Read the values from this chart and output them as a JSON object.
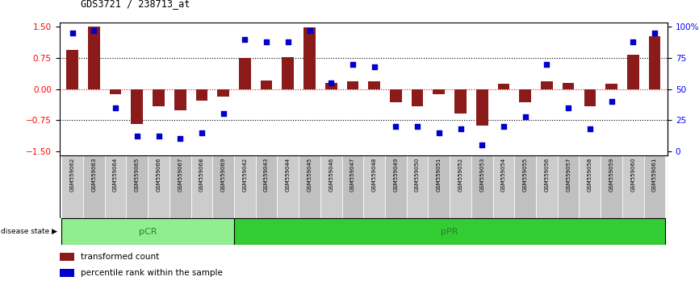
{
  "title": "GDS3721 / 238713_at",
  "samples": [
    "GSM559062",
    "GSM559063",
    "GSM559064",
    "GSM559065",
    "GSM559066",
    "GSM559067",
    "GSM559068",
    "GSM559069",
    "GSM559042",
    "GSM559043",
    "GSM559044",
    "GSM559045",
    "GSM559046",
    "GSM559047",
    "GSM559048",
    "GSM559049",
    "GSM559050",
    "GSM559051",
    "GSM559052",
    "GSM559053",
    "GSM559054",
    "GSM559055",
    "GSM559056",
    "GSM559057",
    "GSM559058",
    "GSM559059",
    "GSM559060",
    "GSM559061"
  ],
  "bar_values": [
    0.95,
    1.5,
    -0.13,
    -0.85,
    -0.42,
    -0.52,
    -0.28,
    -0.18,
    0.75,
    0.2,
    0.78,
    1.48,
    0.15,
    0.18,
    0.18,
    -0.32,
    -0.42,
    -0.12,
    -0.6,
    -0.88,
    0.12,
    -0.32,
    0.18,
    0.15,
    -0.42,
    0.12,
    0.82,
    1.28
  ],
  "dot_values_pct": [
    95,
    97,
    35,
    12,
    12,
    10,
    15,
    30,
    90,
    88,
    88,
    97,
    55,
    70,
    68,
    20,
    20,
    15,
    18,
    5,
    20,
    28,
    70,
    35,
    18,
    40,
    88,
    95
  ],
  "pCR_count": 8,
  "pPR_count": 20,
  "bar_color": "#8B1A1A",
  "dot_color": "#0000CC",
  "pCR_color": "#90EE90",
  "pPR_color": "#32CD32",
  "group_label_color": "#2E7D32",
  "yticks_left": [
    -1.5,
    -0.75,
    0,
    0.75,
    1.5
  ],
  "yticks_right": [
    0,
    25,
    50,
    75,
    100
  ],
  "hlines_dotted": [
    -0.75,
    0.75
  ],
  "hline_red": 0,
  "ylim": [
    -1.6,
    1.6
  ],
  "label_colors": [
    "#CCCCCC",
    "#C0C0C0",
    "#CCCCCC",
    "#C0C0C0",
    "#CCCCCC",
    "#C0C0C0",
    "#CCCCCC",
    "#C0C0C0",
    "#CCCCCC",
    "#C0C0C0",
    "#CCCCCC",
    "#C0C0C0",
    "#CCCCCC",
    "#C0C0C0",
    "#CCCCCC",
    "#C0C0C0",
    "#CCCCCC",
    "#C0C0C0",
    "#CCCCCC",
    "#C0C0C0",
    "#CCCCCC",
    "#C0C0C0",
    "#CCCCCC",
    "#C0C0C0",
    "#CCCCCC",
    "#C0C0C0",
    "#CCCCCC",
    "#C0C0C0"
  ]
}
